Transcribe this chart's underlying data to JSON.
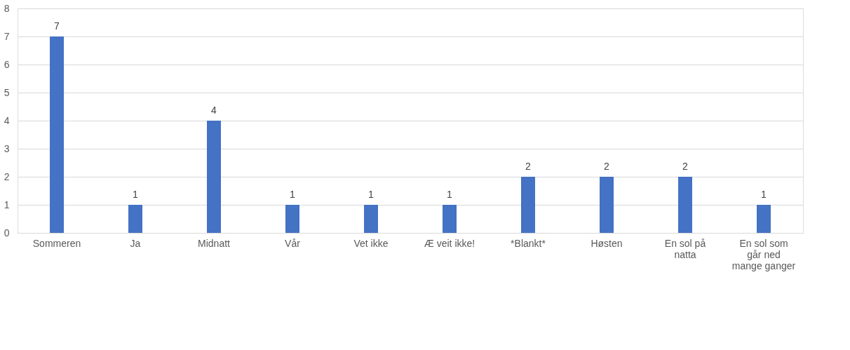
{
  "chart_data": {
    "type": "bar",
    "categories": [
      "Sommeren",
      "Ja",
      "Midnatt",
      "Vår",
      "Vet ikke",
      "Æ veit ikke!",
      "*Blankt*",
      "Høsten",
      "En sol på natta",
      "En sol som går ned mange ganger"
    ],
    "values": [
      7,
      1,
      4,
      1,
      1,
      1,
      2,
      2,
      2,
      1
    ],
    "color": "#4472c4",
    "ylim": [
      0,
      8
    ],
    "yticks": [
      0,
      1,
      2,
      3,
      4,
      5,
      6,
      7,
      8
    ],
    "grid": "y",
    "data_labels": true
  }
}
